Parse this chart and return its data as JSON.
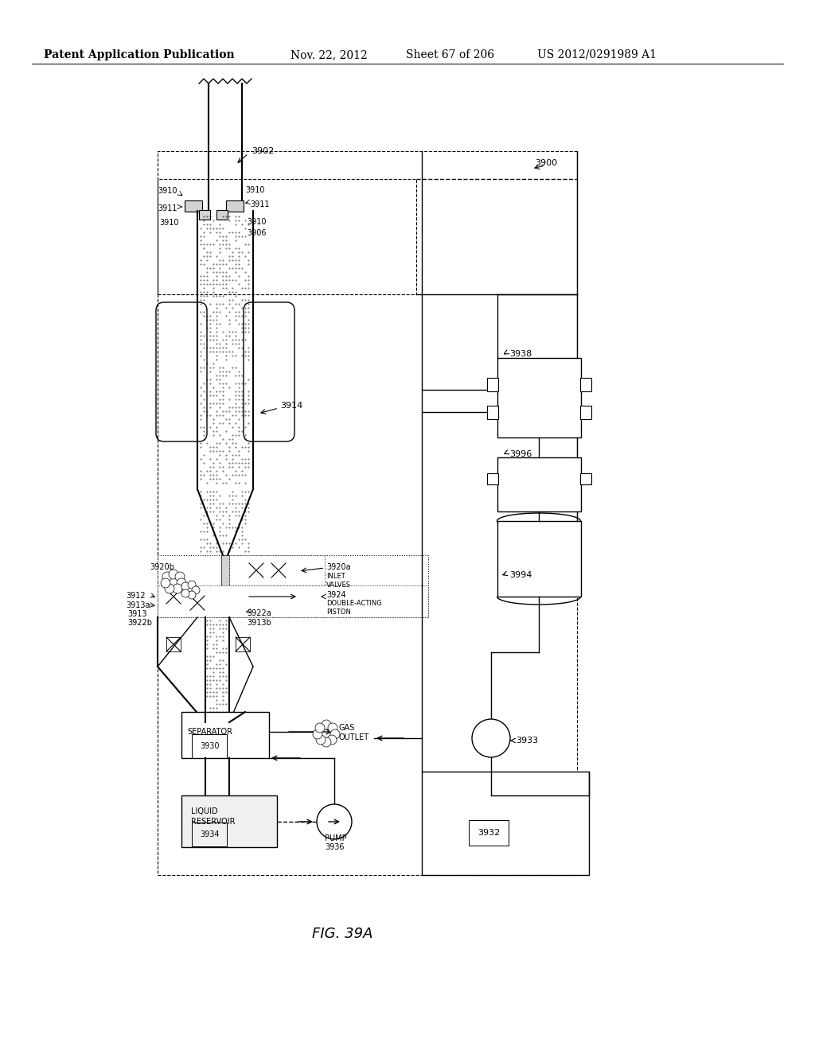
{
  "bg_color": "#ffffff",
  "header_text": "Patent Application Publication",
  "header_date": "Nov. 22, 2012",
  "header_sheet": "Sheet 67 of 206",
  "header_patent": "US 2012/0291989 A1",
  "figure_label": "FIG. 39A",
  "title_fontsize": 10,
  "body_fontsize": 8,
  "small_fontsize": 7
}
